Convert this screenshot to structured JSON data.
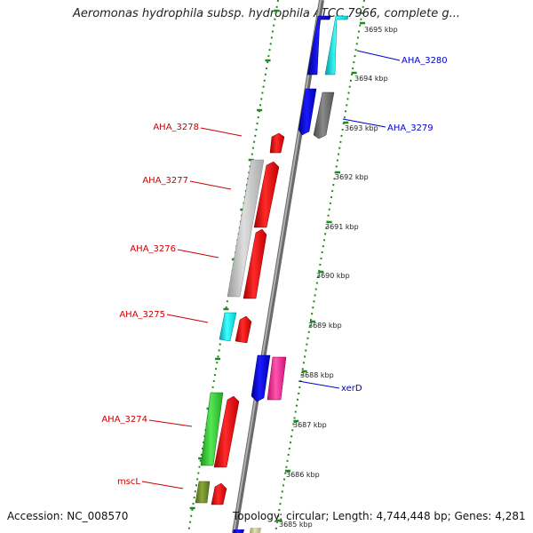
{
  "title": "Aeromonas hydrophila subsp. hydrophila ATCC 7966, complete g...",
  "footer": {
    "accession": "Accession: NC_008570",
    "info": "Topology: circular; Length: 4,744,448 bp; Genes: 4,281"
  },
  "colors": {
    "background": "#ffffff",
    "backbone": "#8c8c8c",
    "tick_marks": "#1f8a1f",
    "forward_label": "#cc0000",
    "reverse_label": "#0000cc",
    "red_feature": "#ff0000",
    "blue_feature": "#0000ee",
    "cyan_feature": "#00e5ee",
    "gray_feature": "#bdbdbd",
    "dark_gray_feature": "#6e6e6e",
    "green_feature": "#33cc33",
    "olive_feature": "#6b8e23",
    "magenta_feature": "#ff1493",
    "khaki_feature": "#c8c89a"
  },
  "tick_labels": [
    "3695 kbp",
    "3694 kbp",
    "3693 kbp",
    "3692 kbp",
    "3691 kbp",
    "3690 kbp",
    "3689 kbp",
    "3688 kbp",
    "3687 kbp",
    "3686 kbp",
    "3685 kbp"
  ],
  "gene_labels": {
    "forward": [
      "AHA_3278",
      "AHA_3277",
      "AHA_3276",
      "AHA_3275",
      "AHA_3274",
      "mscL"
    ],
    "reverse": [
      "AHA_3280",
      "AHA_3279",
      "xerD"
    ]
  }
}
